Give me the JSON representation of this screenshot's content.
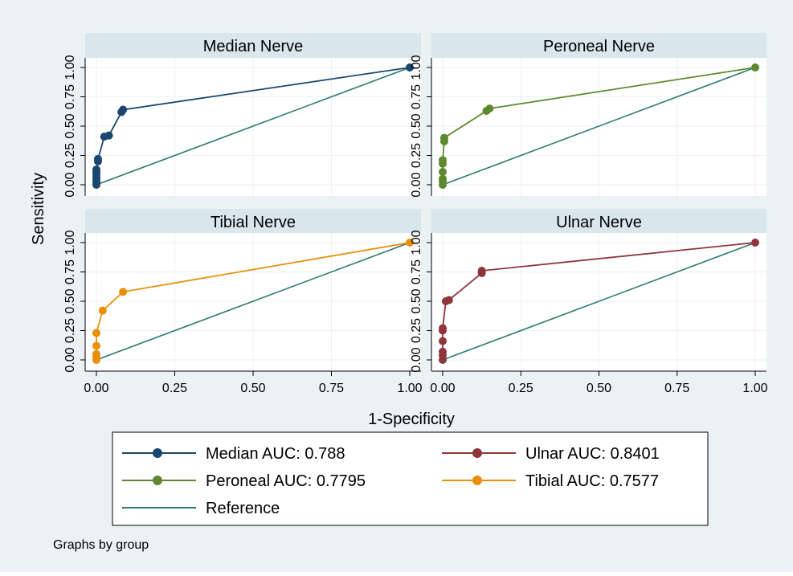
{
  "figure": {
    "ylabel": "Sensitivity",
    "xlabel": "1-Specificity",
    "note": "Graphs by group"
  },
  "colors": {
    "background": "#eaf2f3",
    "plot_bg": "#ffffff",
    "strip_bg": "#d9e6eb",
    "grid": "#eaf2f3",
    "reference": "#2e7a6e",
    "median": "#1a476f",
    "peroneal": "#5d8a2f",
    "tibial": "#e8900c",
    "ulnar": "#90353b"
  },
  "chart_data": {
    "type": "line",
    "xlim": [
      0,
      1
    ],
    "ylim": [
      0,
      1
    ],
    "x_ticks": [
      "0.00",
      "0.25",
      "0.50",
      "0.75",
      "1.00"
    ],
    "y_ticks": [
      "0.00",
      "0.25",
      "0.50",
      "0.75",
      "1.00"
    ],
    "grid": true,
    "panels": [
      {
        "title": "Median Nerve",
        "series_key": "median",
        "x": [
          0,
          0,
          0,
          0,
          0,
          0,
          0,
          0.005,
          0.005,
          0.025,
          0.04,
          0.08,
          0.085,
          1.0
        ],
        "y": [
          0.0,
          0.02,
          0.04,
          0.06,
          0.09,
          0.11,
          0.13,
          0.2,
          0.22,
          0.41,
          0.42,
          0.62,
          0.64,
          1.0
        ]
      },
      {
        "title": "Peroneal Nerve",
        "series_key": "peroneal",
        "x": [
          0,
          0,
          0,
          0,
          0,
          0,
          0.005,
          0.005,
          0.14,
          0.15,
          1.0
        ],
        "y": [
          0.0,
          0.03,
          0.05,
          0.11,
          0.18,
          0.21,
          0.37,
          0.4,
          0.63,
          0.65,
          1.0
        ]
      },
      {
        "title": "Tibial Nerve",
        "series_key": "tibial",
        "x": [
          0,
          0,
          0,
          0,
          0,
          0.02,
          0.085,
          1.0
        ],
        "y": [
          0.0,
          0.03,
          0.05,
          0.12,
          0.23,
          0.42,
          0.58,
          1.0
        ]
      },
      {
        "title": "Ulnar Nerve",
        "series_key": "ulnar",
        "x": [
          0,
          0,
          0,
          0,
          0,
          0,
          0.01,
          0.02,
          0.125,
          0.125,
          1.0
        ],
        "y": [
          0.0,
          0.04,
          0.07,
          0.16,
          0.25,
          0.27,
          0.5,
          0.51,
          0.74,
          0.76,
          1.0
        ]
      }
    ],
    "legend": [
      {
        "label": "Median AUC: 0.788",
        "series_key": "median",
        "marker": true
      },
      {
        "label": "Ulnar AUC: 0.8401",
        "series_key": "ulnar",
        "marker": true
      },
      {
        "label": "Peroneal AUC: 0.7795",
        "series_key": "peroneal",
        "marker": true
      },
      {
        "label": "Tibial AUC: 0.7577",
        "series_key": "tibial",
        "marker": true
      },
      {
        "label": "Reference",
        "series_key": "reference",
        "marker": false
      }
    ],
    "legend_placement": "bottom"
  }
}
